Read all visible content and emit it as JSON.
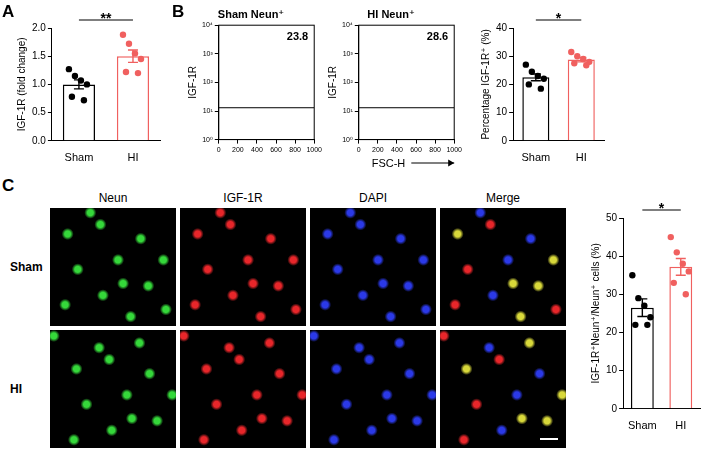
{
  "chart_data": [
    {
      "panel": "A",
      "type": "bar",
      "categories": [
        "Sham",
        "HI"
      ],
      "values": [
        1.0,
        1.5
      ],
      "errors": [
        0.08,
        0.11
      ],
      "points": [
        [
          1.27,
          1.15,
          1.07,
          1.0,
          0.78,
          0.72
        ],
        [
          1.88,
          1.72,
          1.55,
          1.45,
          1.22,
          1.2
        ]
      ],
      "colors": [
        "#000000",
        "#f0605f"
      ],
      "ylabel": "IGF-1R (fold change)",
      "ylim": [
        0,
        2.0
      ],
      "yticks": [
        {
          "value": 0,
          "label": "0.0"
        },
        {
          "value": 0.5,
          "label": "0.5"
        },
        {
          "value": 1,
          "label": "1.0"
        },
        {
          "value": 1.5,
          "label": "1.5"
        },
        {
          "value": 2,
          "label": "2.0"
        }
      ],
      "significance": "**"
    },
    {
      "panel": "B",
      "type": "scatter",
      "title": "Sham Neun⁺",
      "ylabel": "IGF-1R",
      "xlim": [
        0,
        1000
      ],
      "xticks": [
        0,
        200,
        400,
        600,
        800,
        1000
      ],
      "ylim": [
        1,
        10000
      ],
      "yticks": [
        {
          "value": 1,
          "label": "10⁰"
        },
        {
          "value": 10,
          "label": "10¹"
        },
        {
          "value": 100,
          "label": "10²"
        },
        {
          "value": 1000,
          "label": "10³"
        },
        {
          "value": 10000,
          "label": "10⁴"
        }
      ],
      "log": "y",
      "gate": 13,
      "gate_percentage": 23.8
    },
    {
      "type": "scatter",
      "title": "HI Neun⁺",
      "ylabel": "IGF-1R",
      "xlabel": "FSC-H",
      "xlim": [
        0,
        1000
      ],
      "xticks": [
        0,
        200,
        400,
        600,
        800,
        1000
      ],
      "ylim": [
        1,
        10000
      ],
      "yticks": [
        {
          "value": 1,
          "label": "10⁰"
        },
        {
          "value": 10,
          "label": "10¹"
        },
        {
          "value": 100,
          "label": "10²"
        },
        {
          "value": 1000,
          "label": "10³"
        },
        {
          "value": 10000,
          "label": "10⁴"
        }
      ],
      "log": "y",
      "gate": 13,
      "gate_percentage": 28.6
    },
    {
      "type": "bar",
      "categories": [
        "Sham",
        "HI"
      ],
      "values": [
        22.5,
        28.8
      ],
      "errors": [
        1.2,
        0.8
      ],
      "points": [
        [
          27,
          24.5,
          23,
          22,
          20,
          18.5
        ],
        [
          31.5,
          30,
          29,
          28,
          27.5,
          26.8
        ]
      ],
      "colors": [
        "#000000",
        "#f0605f"
      ],
      "ylabel": "Percentage IGF-1R⁺ (%)",
      "ylim": [
        0,
        40
      ],
      "yticks": [
        0,
        10,
        20,
        30,
        40
      ],
      "significance": "*"
    },
    {
      "type": "bar",
      "categories": [
        "Sham",
        "HI"
      ],
      "values": [
        26.5,
        37.2
      ],
      "errors": [
        2.3,
        2.2
      ],
      "points": [
        [
          35,
          29,
          27,
          24,
          22,
          22
        ],
        [
          45,
          41,
          38,
          36,
          33,
          30
        ]
      ],
      "colors": [
        "#000000",
        "#f0605f"
      ],
      "ylabel": "IGF-1R⁺Neun⁺/Neun⁺ cells (%)",
      "ylim": [
        0,
        50
      ],
      "yticks": [
        0,
        10,
        20,
        30,
        40,
        50
      ],
      "significance": "*"
    }
  ],
  "image_grid": {
    "panel": "C",
    "columns": [
      "Neun",
      "IGF-1R",
      "DAPI",
      "Merge"
    ],
    "rows": [
      "Sham",
      "HI"
    ]
  }
}
